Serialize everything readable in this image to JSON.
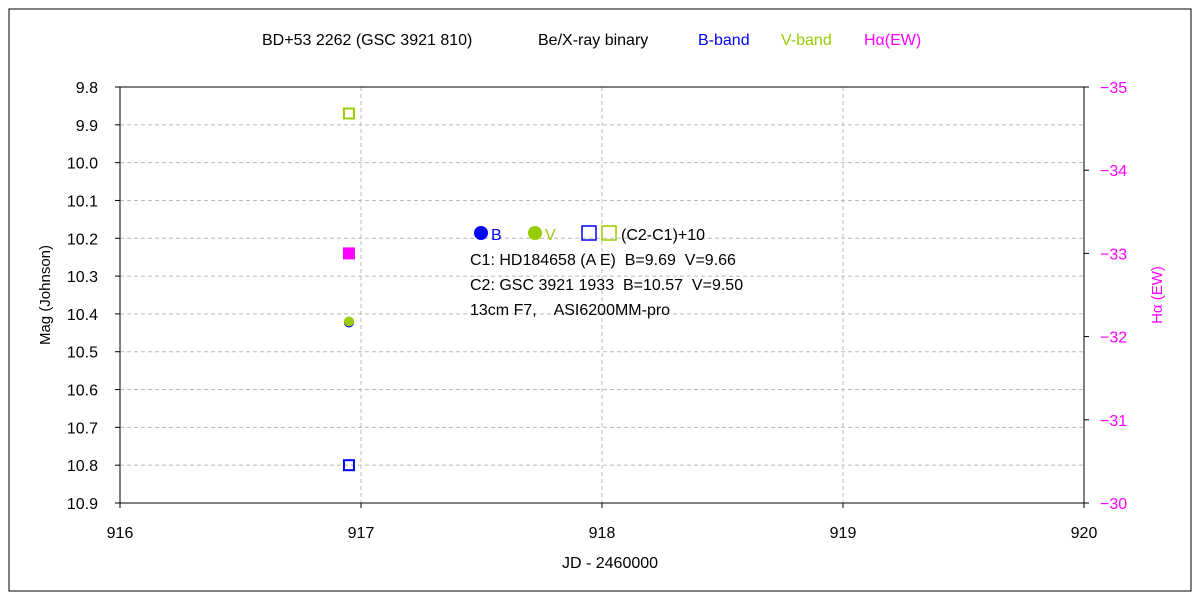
{
  "chart_data": {
    "type": "scatter",
    "title": {
      "object": "BD+53 2262 (GSC 3921 810)",
      "class": "Be/X-ray binary",
      "legend_b": "B-band",
      "legend_v": "V-band",
      "legend_ha": "Hα(EW)"
    },
    "xlabel": "JD - 2460000",
    "ylabel": "Mag (Johnson)",
    "y2label": "Hα (EW)",
    "xlim": [
      916,
      920
    ],
    "ylim": [
      9.8,
      10.9
    ],
    "y2lim": [
      -35,
      -30
    ],
    "xticks": [
      "916",
      "917",
      "918",
      "919",
      "920"
    ],
    "yticks": [
      "9.8",
      "9.9",
      "10.0",
      "10.1",
      "10.2",
      "10.3",
      "10.4",
      "10.5",
      "10.6",
      "10.7",
      "10.8",
      "10.9"
    ],
    "y2ticks": [
      "-35",
      "-34",
      "-33",
      "-32",
      "-31",
      "-30"
    ],
    "grid": true,
    "colors": {
      "B": "#0000ff",
      "V": "#99cc00",
      "Ha": "#ff00ff"
    },
    "series": [
      {
        "name": "B",
        "marker": "filled-circle",
        "x": [
          916.95
        ],
        "y": [
          10.42
        ]
      },
      {
        "name": "V",
        "marker": "filled-circle",
        "x": [
          916.95
        ],
        "y": [
          10.42
        ]
      },
      {
        "name": "B (C2-C1)+10",
        "marker": "open-square",
        "x": [
          916.95
        ],
        "y": [
          10.8
        ]
      },
      {
        "name": "V (C2-C1)+10",
        "marker": "open-square",
        "x": [
          916.95
        ],
        "y": [
          9.87
        ]
      },
      {
        "name": "Hα EW",
        "marker": "filled-square",
        "axis": "right",
        "x": [
          916.95
        ],
        "y": [
          -33.0
        ]
      }
    ],
    "annotation": {
      "b": "B",
      "v": "V",
      "check": "(C2-C1)+10",
      "c1": "C1: HD184658 (A E)  B=9.69  V=9.66",
      "c2": "C2: GSC 3921 1933  B=10.57  V=9.50",
      "inst": "13cm F7,    ASI6200MM-pro"
    }
  }
}
